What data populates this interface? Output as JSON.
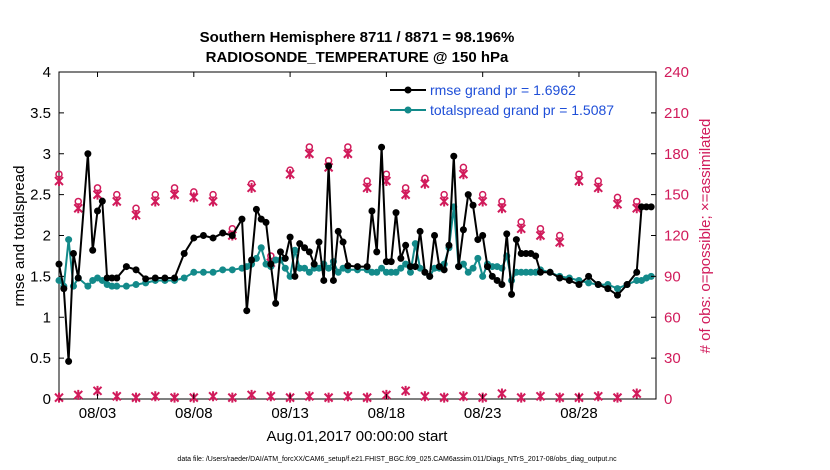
{
  "colors": {
    "rmse": "#000000",
    "spread": "#138a8a",
    "obs": "#d11b5b",
    "legend_text": "#1f4fd8",
    "axis": "#000000"
  },
  "chart_data": {
    "type": "line",
    "title": "Southern Hemisphere 8711 / 8871 = 98.196%",
    "subtitle": "RADIOSONDE_TEMPERATURE @ 150 hPa",
    "xlabel": "Aug.01,2017 00:00:00 start",
    "ylabel_left": "rmse and totalspread",
    "ylabel_right": "# of obs: o=possible; ×=assimilated",
    "ylim_left": [
      0,
      4
    ],
    "ylim_right": [
      0,
      240
    ],
    "xlim": [
      1.0,
      32.0
    ],
    "xticks": [
      3,
      8,
      13,
      18,
      23,
      28
    ],
    "xtick_labels": [
      "08/03",
      "08/08",
      "08/13",
      "08/18",
      "08/23",
      "08/28"
    ],
    "yticks_left": [
      0,
      0.5,
      1,
      1.5,
      2,
      2.5,
      3,
      3.5,
      4
    ],
    "ytick_labels_left": [
      "0",
      "0.5",
      "1",
      "1.5",
      "2",
      "2.5",
      "3",
      "3.5",
      "4"
    ],
    "yticks_right": [
      0,
      30,
      60,
      90,
      120,
      150,
      180,
      210,
      240
    ],
    "ytick_labels_right": [
      "0",
      "30",
      "60",
      "90",
      "120",
      "150",
      "180",
      "210",
      "240"
    ],
    "footer": "data file: /Users/raeder/DAI/ATM_forcXX/CAM6_setup/f.e21.FHIST_BGC.f09_025.CAM6assim.011/Diags_NTrS_2017-08/obs_diag_output.nc",
    "series": [
      {
        "name": "rmse",
        "legend": "rmse grand pr = 1.6962",
        "x": [
          1.0,
          1.25,
          1.5,
          1.75,
          2.0,
          2.5,
          2.75,
          3.0,
          3.25,
          3.5,
          3.75,
          4.0,
          4.5,
          5.0,
          5.5,
          6.0,
          6.5,
          7.0,
          7.5,
          8.0,
          8.5,
          9.0,
          9.5,
          10.0,
          10.5,
          10.75,
          11.0,
          11.25,
          11.5,
          11.75,
          12.0,
          12.25,
          12.5,
          12.75,
          13.0,
          13.25,
          13.5,
          13.75,
          14.0,
          14.25,
          14.5,
          14.75,
          15.0,
          15.25,
          15.5,
          15.75,
          16.0,
          16.5,
          17.0,
          17.25,
          17.5,
          17.75,
          18.0,
          18.25,
          18.5,
          18.75,
          19.0,
          19.25,
          19.5,
          19.75,
          20.0,
          20.25,
          20.5,
          20.75,
          21.0,
          21.25,
          21.5,
          21.75,
          22.0,
          22.25,
          22.5,
          22.75,
          23.0,
          23.25,
          23.5,
          23.75,
          24.0,
          24.25,
          24.5,
          24.75,
          25.0,
          25.25,
          25.5,
          25.75,
          26.0,
          26.5,
          27.0,
          27.5,
          28.0,
          28.5,
          29.0,
          29.5,
          30.0,
          30.5,
          31.0,
          31.25,
          31.5,
          31.75
        ],
        "y": [
          1.65,
          1.35,
          0.46,
          1.78,
          1.48,
          3.0,
          1.82,
          2.3,
          2.42,
          1.48,
          1.48,
          1.48,
          1.62,
          1.58,
          1.47,
          1.48,
          1.48,
          1.48,
          1.78,
          1.97,
          2.0,
          1.97,
          2.03,
          2.0,
          2.2,
          1.08,
          1.7,
          2.32,
          2.2,
          2.16,
          1.65,
          1.17,
          1.8,
          1.72,
          1.98,
          1.5,
          1.9,
          1.85,
          1.8,
          1.65,
          1.92,
          1.45,
          2.85,
          1.45,
          2.05,
          1.92,
          1.63,
          1.62,
          1.62,
          2.3,
          1.8,
          3.08,
          1.68,
          1.68,
          2.28,
          1.72,
          1.88,
          1.62,
          1.62,
          2.05,
          1.55,
          1.5,
          2.0,
          1.62,
          1.58,
          1.88,
          2.97,
          1.62,
          2.07,
          2.5,
          2.37,
          1.95,
          2.0,
          1.62,
          1.5,
          1.45,
          1.4,
          2.02,
          1.28,
          1.95,
          1.78,
          1.78,
          1.78,
          1.75,
          1.55,
          1.55,
          1.48,
          1.45,
          1.4,
          1.5,
          1.4,
          1.35,
          1.27,
          1.4,
          1.55,
          2.35,
          2.35,
          2.35
        ]
      },
      {
        "name": "totalspread",
        "legend": "totalspread grand pr = 1.5087",
        "x": [
          1.0,
          1.25,
          1.5,
          1.75,
          2.0,
          2.5,
          2.75,
          3.0,
          3.25,
          3.5,
          3.75,
          4.0,
          4.5,
          5.0,
          5.5,
          6.0,
          6.5,
          7.0,
          7.5,
          8.0,
          8.5,
          9.0,
          9.5,
          10.0,
          10.5,
          10.75,
          11.0,
          11.25,
          11.5,
          11.75,
          12.0,
          12.25,
          12.5,
          12.75,
          13.0,
          13.25,
          13.5,
          13.75,
          14.0,
          14.25,
          14.5,
          14.75,
          15.0,
          15.25,
          15.5,
          15.75,
          16.0,
          16.5,
          17.0,
          17.25,
          17.5,
          17.75,
          18.0,
          18.25,
          18.5,
          18.75,
          19.0,
          19.25,
          19.5,
          19.75,
          20.0,
          20.25,
          20.5,
          20.75,
          21.0,
          21.25,
          21.5,
          21.75,
          22.0,
          22.25,
          22.5,
          22.75,
          23.0,
          23.25,
          23.5,
          23.75,
          24.0,
          24.25,
          24.5,
          24.75,
          25.0,
          25.25,
          25.5,
          25.75,
          26.0,
          26.5,
          27.0,
          27.5,
          28.0,
          28.5,
          29.0,
          29.5,
          30.0,
          30.5,
          31.0,
          31.25,
          31.5,
          31.75
        ],
        "y": [
          1.45,
          1.38,
          1.95,
          1.38,
          1.48,
          1.38,
          1.45,
          1.48,
          1.45,
          1.4,
          1.38,
          1.38,
          1.38,
          1.4,
          1.42,
          1.45,
          1.45,
          1.45,
          1.48,
          1.55,
          1.55,
          1.55,
          1.58,
          1.58,
          1.6,
          1.62,
          1.65,
          1.72,
          1.85,
          1.65,
          1.62,
          1.7,
          1.7,
          1.6,
          1.5,
          1.82,
          1.6,
          1.6,
          1.55,
          1.6,
          1.6,
          1.65,
          1.6,
          1.68,
          1.55,
          1.6,
          1.58,
          1.58,
          1.58,
          1.55,
          1.55,
          1.6,
          1.55,
          1.55,
          1.55,
          1.6,
          1.65,
          1.55,
          1.9,
          1.6,
          1.55,
          1.5,
          1.6,
          1.6,
          1.65,
          1.85,
          2.35,
          1.62,
          1.65,
          1.55,
          1.6,
          1.72,
          1.5,
          1.65,
          1.62,
          1.62,
          1.6,
          1.75,
          1.45,
          1.55,
          1.55,
          1.55,
          1.55,
          1.55,
          1.58,
          1.55,
          1.5,
          1.48,
          1.45,
          1.42,
          1.4,
          1.4,
          1.35,
          1.4,
          1.45,
          1.45,
          1.48,
          1.5
        ]
      },
      {
        "name": "obs_possible",
        "axis": "right",
        "marker": "o",
        "x": [
          1,
          2,
          3,
          4,
          5,
          6,
          7,
          8,
          9,
          10,
          11,
          12,
          13,
          14,
          15,
          16,
          17,
          18,
          19,
          20,
          21,
          22,
          23,
          24,
          25,
          26,
          27,
          28,
          29,
          30,
          31
        ],
        "y": [
          165,
          145,
          155,
          150,
          140,
          150,
          155,
          152,
          150,
          125,
          158,
          105,
          168,
          185,
          175,
          185,
          160,
          165,
          155,
          162,
          150,
          170,
          150,
          145,
          130,
          125,
          120,
          165,
          160,
          148,
          145
        ]
      },
      {
        "name": "obs_assimilated",
        "axis": "right",
        "marker": "x",
        "x": [
          1,
          2,
          3,
          4,
          5,
          6,
          7,
          8,
          9,
          10,
          11,
          12,
          13,
          14,
          15,
          16,
          17,
          18,
          19,
          20,
          21,
          22,
          23,
          24,
          25,
          26,
          27,
          28,
          29,
          30,
          31
        ],
        "y": [
          160,
          140,
          150,
          145,
          135,
          145,
          150,
          148,
          145,
          120,
          155,
          100,
          165,
          180,
          170,
          180,
          155,
          160,
          150,
          158,
          145,
          165,
          145,
          140,
          125,
          120,
          115,
          160,
          155,
          143,
          140
        ]
      },
      {
        "name": "obs_low",
        "axis": "right",
        "marker": "x",
        "x": [
          1,
          2,
          3,
          4,
          5,
          6,
          7,
          8,
          9,
          10,
          11,
          12,
          13,
          14,
          15,
          16,
          17,
          18,
          19,
          20,
          21,
          22,
          23,
          24,
          25,
          26,
          27,
          28,
          29,
          30,
          31
        ],
        "y": [
          1,
          3,
          6,
          2,
          1,
          2,
          1,
          1,
          2,
          1,
          3,
          2,
          1,
          2,
          1,
          2,
          1,
          3,
          6,
          2,
          1,
          2,
          1,
          4,
          1,
          2,
          1,
          1,
          2,
          1,
          4
        ]
      }
    ]
  }
}
